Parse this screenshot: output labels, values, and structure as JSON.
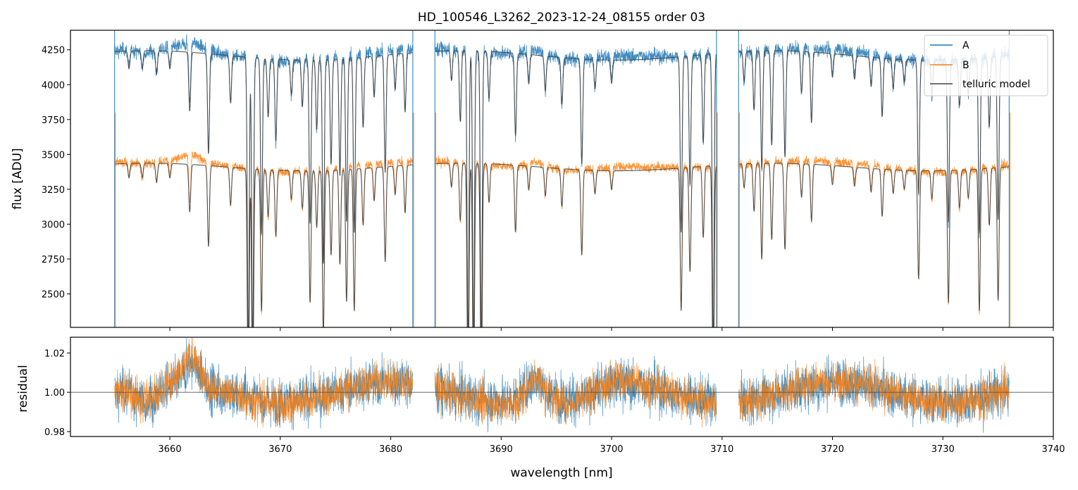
{
  "chart_data": [
    {
      "type": "line",
      "title": "HD_100546_L3262_2023-12-24_08155  order 03",
      "xlabel": "",
      "ylabel": "flux [ADU]",
      "xlim": [
        3651,
        3740
      ],
      "ylim": [
        2260,
        4390
      ],
      "yticks": [
        2500,
        2750,
        3000,
        3250,
        3500,
        3750,
        4000,
        4250
      ],
      "ytick_labels": [
        "2500",
        "2750",
        "3000",
        "3250",
        "3500",
        "3750",
        "4000",
        "4250"
      ],
      "grid": false,
      "legend": "top-right",
      "segments": [
        [
          3655,
          3682
        ],
        [
          3684,
          3709.5
        ],
        [
          3711.5,
          3736
        ]
      ],
      "series": [
        {
          "name": "A",
          "color": "#1f77b4",
          "continuum": 4220
        },
        {
          "name": "B",
          "color": "#ff7f0e",
          "continuum": 3420
        },
        {
          "name": "telluric model",
          "color": "#444444",
          "continuum_A": 4210,
          "continuum_B": 3410
        }
      ],
      "absorption_lines": [
        {
          "x": 3656.3,
          "depth": 0.03
        },
        {
          "x": 3657.5,
          "depth": 0.03
        },
        {
          "x": 3658.8,
          "depth": 0.04
        },
        {
          "x": 3660.0,
          "depth": 0.03
        },
        {
          "x": 3661.8,
          "depth": 0.1
        },
        {
          "x": 3663.5,
          "depth": 0.17
        },
        {
          "x": 3665.5,
          "depth": 0.08
        },
        {
          "x": 3667.1,
          "depth": 0.5
        },
        {
          "x": 3667.5,
          "depth": 0.5
        },
        {
          "x": 3668.3,
          "depth": 0.3
        },
        {
          "x": 3668.9,
          "depth": 0.1
        },
        {
          "x": 3669.6,
          "depth": 0.14
        },
        {
          "x": 3671.0,
          "depth": 0.06
        },
        {
          "x": 3672.0,
          "depth": 0.08
        },
        {
          "x": 3672.7,
          "depth": 0.28
        },
        {
          "x": 3673.3,
          "depth": 0.12
        },
        {
          "x": 3673.9,
          "depth": 0.35
        },
        {
          "x": 3674.6,
          "depth": 0.18
        },
        {
          "x": 3675.4,
          "depth": 0.2
        },
        {
          "x": 3676.0,
          "depth": 0.28
        },
        {
          "x": 3676.7,
          "depth": 0.3
        },
        {
          "x": 3677.5,
          "depth": 0.12
        },
        {
          "x": 3678.5,
          "depth": 0.07
        },
        {
          "x": 3679.5,
          "depth": 0.2
        },
        {
          "x": 3680.4,
          "depth": 0.06
        },
        {
          "x": 3681.3,
          "depth": 0.1
        },
        {
          "x": 3685.5,
          "depth": 0.05
        },
        {
          "x": 3686.3,
          "depth": 0.12
        },
        {
          "x": 3687.0,
          "depth": 0.5
        },
        {
          "x": 3687.5,
          "depth": 0.5
        },
        {
          "x": 3688.2,
          "depth": 0.5
        },
        {
          "x": 3688.9,
          "depth": 0.08
        },
        {
          "x": 3691.3,
          "depth": 0.14
        },
        {
          "x": 3692.5,
          "depth": 0.05
        },
        {
          "x": 3694.0,
          "depth": 0.06
        },
        {
          "x": 3695.5,
          "depth": 0.08
        },
        {
          "x": 3697.3,
          "depth": 0.18
        },
        {
          "x": 3698.5,
          "depth": 0.05
        },
        {
          "x": 3700.0,
          "depth": 0.04
        },
        {
          "x": 3706.3,
          "depth": 0.3
        },
        {
          "x": 3707.1,
          "depth": 0.22
        },
        {
          "x": 3708.3,
          "depth": 0.15
        },
        {
          "x": 3709.2,
          "depth": 0.5
        },
        {
          "x": 3712.0,
          "depth": 0.05
        },
        {
          "x": 3712.9,
          "depth": 0.1
        },
        {
          "x": 3713.6,
          "depth": 0.2
        },
        {
          "x": 3714.5,
          "depth": 0.16
        },
        {
          "x": 3715.7,
          "depth": 0.18
        },
        {
          "x": 3717.2,
          "depth": 0.07
        },
        {
          "x": 3718.1,
          "depth": 0.12
        },
        {
          "x": 3720.0,
          "depth": 0.04
        },
        {
          "x": 3722.0,
          "depth": 0.04
        },
        {
          "x": 3723.5,
          "depth": 0.05
        },
        {
          "x": 3724.5,
          "depth": 0.1
        },
        {
          "x": 3725.5,
          "depth": 0.05
        },
        {
          "x": 3726.5,
          "depth": 0.04
        },
        {
          "x": 3727.8,
          "depth": 0.23
        },
        {
          "x": 3729.0,
          "depth": 0.06
        },
        {
          "x": 3730.5,
          "depth": 0.28
        },
        {
          "x": 3731.5,
          "depth": 0.08
        },
        {
          "x": 3732.3,
          "depth": 0.06
        },
        {
          "x": 3733.3,
          "depth": 0.3
        },
        {
          "x": 3734.2,
          "depth": 0.12
        },
        {
          "x": 3735.0,
          "depth": 0.28
        }
      ]
    },
    {
      "type": "line",
      "title": "",
      "xlabel": "wavelength [nm]",
      "ylabel": "residual",
      "xlim": [
        3651,
        3740
      ],
      "ylim": [
        0.9775,
        1.028
      ],
      "xticks": [
        3660,
        3670,
        3680,
        3690,
        3700,
        3710,
        3720,
        3730,
        3740
      ],
      "xtick_labels": [
        "3660",
        "3670",
        "3680",
        "3690",
        "3700",
        "3710",
        "3720",
        "3730",
        "3740"
      ],
      "yticks": [
        0.98,
        1.0,
        1.02
      ],
      "ytick_labels": [
        "0.98",
        "1.00",
        "1.02"
      ],
      "reference_line": 1.0,
      "series": [
        {
          "name": "A",
          "color": "#1f77b4"
        },
        {
          "name": "B",
          "color": "#ff7f0e"
        }
      ]
    }
  ]
}
